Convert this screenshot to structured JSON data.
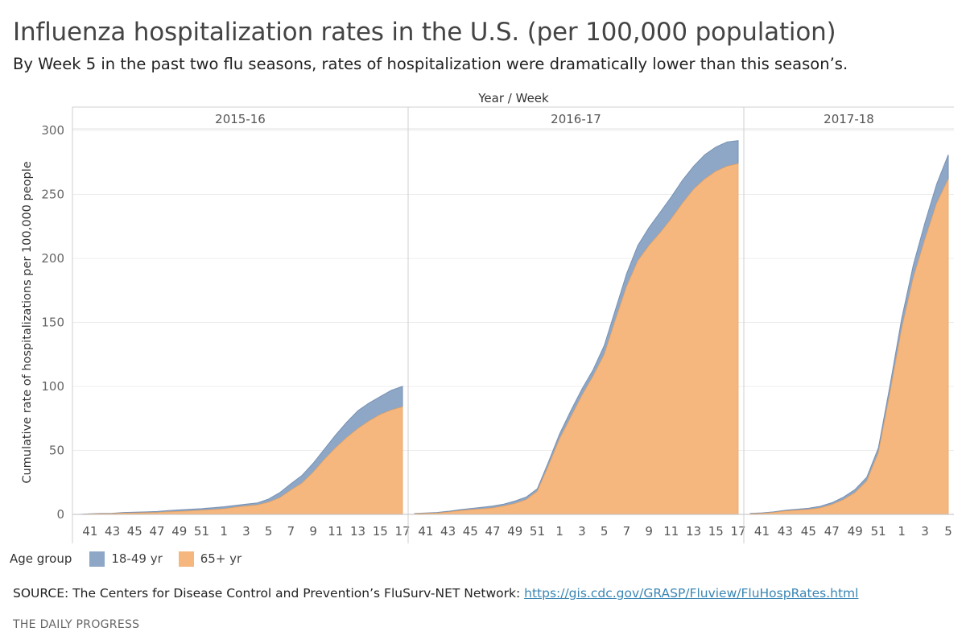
{
  "header": {
    "title": "Influenza hospitalization rates in the U.S. (per 100,000 population)",
    "subtitle": "By Week 5 in the past two flu seasons, rates of hospitalization were dramatically lower than this season’s."
  },
  "legend": {
    "title": "Age group",
    "items": [
      {
        "label": "18-49 yr",
        "color": "#8ea7c6"
      },
      {
        "label": "65+ yr",
        "color": "#f5b77e"
      }
    ]
  },
  "footer": {
    "source_prefix": "SOURCE: The Centers for Disease Control and Prevention’s FluSurv-NET Network: ",
    "source_link": "https://gis.cdc.gov/GRASP/Fluview/FluHospRates.html",
    "credit": "THE DAILY PROGRESS"
  },
  "chart_data": {
    "type": "area",
    "stacked": true,
    "column_header": "Year / Week",
    "ylabel": "Cumulative rate of hospitalizations per 100,000 people",
    "ylim": [
      0,
      300
    ],
    "yticks": [
      0,
      50,
      100,
      150,
      200,
      250,
      300
    ],
    "grid": true,
    "colors": {
      "18-49 yr": "#8ea7c6",
      "65+ yr": "#f5b77e"
    },
    "panels": [
      {
        "name": "2015-16",
        "weeks": [
          40,
          41,
          42,
          43,
          44,
          45,
          46,
          47,
          48,
          49,
          50,
          51,
          52,
          1,
          2,
          3,
          4,
          5,
          6,
          7,
          8,
          9,
          10,
          11,
          12,
          13,
          14,
          15,
          16,
          17
        ],
        "tick_labels": [
          "41",
          "43",
          "45",
          "47",
          "49",
          "51",
          "1",
          "3",
          "5",
          "7",
          "9",
          "11",
          "13",
          "15",
          "17"
        ],
        "series": [
          {
            "name": "65+ yr",
            "values": [
              0,
              0.3,
              0.5,
              0.6,
              1.0,
              1.1,
              1.3,
              1.5,
              2.0,
              2.3,
              2.7,
              3.2,
              3.7,
              4.3,
              5.5,
              6.5,
              7.3,
              9.5,
              13.0,
              19.0,
              24.5,
              33.0,
              43.0,
              52.0,
              60.0,
              67.0,
              73.0,
              78.0,
              81.5,
              84.0
            ]
          },
          {
            "name": "18-49 yr",
            "values": [
              0,
              0.2,
              0.3,
              0.3,
              0.5,
              0.6,
              0.7,
              0.8,
              1.0,
              1.2,
              1.3,
              1.3,
              1.5,
              1.7,
              1.5,
              1.5,
              1.7,
              2.5,
              4.0,
              5.0,
              6.0,
              7.0,
              8.0,
              10.0,
              12.0,
              14.0,
              14.0,
              14.0,
              15.5,
              16.0
            ]
          }
        ]
      },
      {
        "name": "2016-17",
        "weeks": [
          40,
          41,
          42,
          43,
          44,
          45,
          46,
          47,
          48,
          49,
          50,
          51,
          52,
          1,
          2,
          3,
          4,
          5,
          6,
          7,
          8,
          9,
          10,
          11,
          12,
          13,
          14,
          15,
          16,
          17
        ],
        "tick_labels": [
          "41",
          "43",
          "45",
          "47",
          "49",
          "51",
          "1",
          "3",
          "5",
          "7",
          "9",
          "11",
          "13",
          "15",
          "17"
        ],
        "series": [
          {
            "name": "65+ yr",
            "values": [
              0.5,
              0.8,
              1.0,
              1.8,
              2.8,
              3.6,
              4.2,
              5.0,
              6.5,
              8.5,
              11.5,
              18.0,
              38.0,
              59.0,
              76.0,
              93.0,
              108.0,
              125.0,
              152.0,
              178.0,
              198.0,
              210.0,
              220.0,
              231.0,
              243.0,
              254.0,
              262.0,
              268.0,
              272.0,
              274.0
            ]
          },
          {
            "name": "18-49 yr",
            "values": [
              0.2,
              0.3,
              0.5,
              0.6,
              0.8,
              1.0,
              1.3,
              1.5,
              1.5,
              2.0,
              2.0,
              2.0,
              3.0,
              4.0,
              5.0,
              5.0,
              5.0,
              7.0,
              8.0,
              10.0,
              12.0,
              14.0,
              16.0,
              17.0,
              18.0,
              18.0,
              19.0,
              19.0,
              19.0,
              18.0
            ]
          }
        ]
      },
      {
        "name": "2017-18",
        "weeks": [
          40,
          41,
          42,
          43,
          44,
          45,
          46,
          47,
          48,
          49,
          50,
          51,
          52,
          1,
          2,
          3,
          4,
          5
        ],
        "tick_labels": [
          "41",
          "43",
          "45",
          "47",
          "49",
          "51",
          "1",
          "3",
          "5"
        ],
        "series": [
          {
            "name": "65+ yr",
            "values": [
              0.5,
              0.8,
              1.5,
              2.6,
              3.2,
              3.8,
              5.0,
              7.6,
              11.5,
              17.0,
              26.0,
              48.0,
              95.0,
              145.0,
              185.0,
              215.0,
              243.0,
              262.0
            ]
          },
          {
            "name": "18-49 yr",
            "values": [
              0.3,
              0.4,
              0.5,
              0.6,
              0.8,
              1.0,
              1.3,
              1.5,
              2.0,
              2.5,
              3.0,
              4.0,
              6.0,
              8.0,
              10.0,
              13.0,
              15.0,
              19.0
            ]
          }
        ]
      }
    ]
  }
}
